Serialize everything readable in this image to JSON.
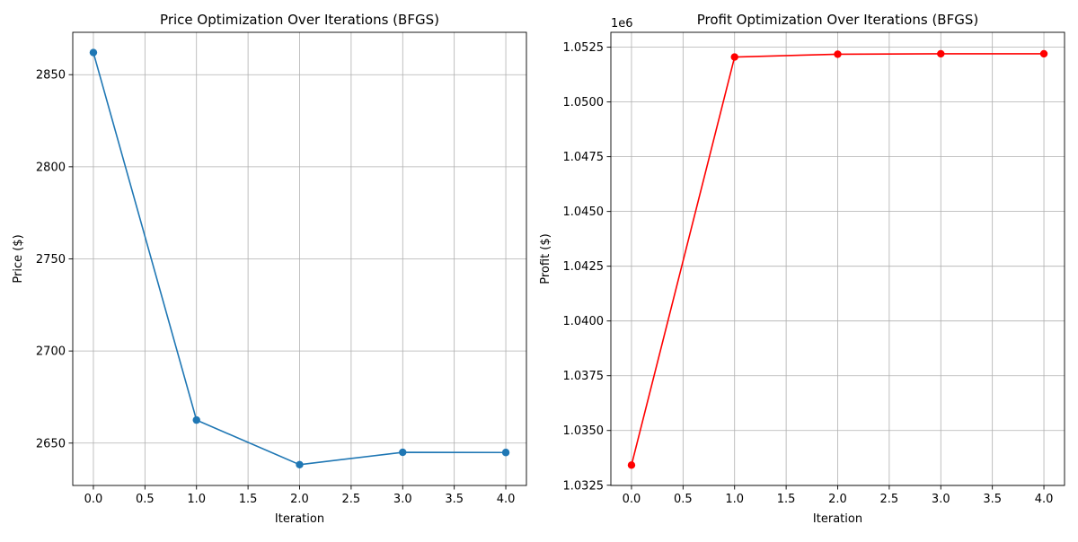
{
  "chart_data": [
    {
      "type": "line",
      "title": "Price Optimization Over Iterations (BFGS)",
      "xlabel": "Iteration",
      "ylabel": "Price ($)",
      "offset_text": "",
      "x": [
        0,
        1,
        2,
        3,
        4
      ],
      "series": [
        {
          "values": [
            2862,
            2662.5,
            2638.3,
            2645,
            2644.9
          ],
          "color": "#1f77b4",
          "marker": "circle"
        }
      ],
      "xlim": [
        -0.2,
        4.2
      ],
      "ylim": [
        2627,
        2873
      ],
      "xticks": [
        0.0,
        0.5,
        1.0,
        1.5,
        2.0,
        2.5,
        3.0,
        3.5,
        4.0
      ],
      "xtick_labels": [
        "0.0",
        "0.5",
        "1.0",
        "1.5",
        "2.0",
        "2.5",
        "3.0",
        "3.5",
        "4.0"
      ],
      "yticks": [
        2650,
        2700,
        2750,
        2800,
        2850
      ],
      "ytick_labels": [
        "2650",
        "2700",
        "2750",
        "2800",
        "2850"
      ],
      "grid": true,
      "legend": "none"
    },
    {
      "type": "line",
      "title": "Profit Optimization Over Iterations (BFGS)",
      "xlabel": "Iteration",
      "ylabel": "Profit ($)",
      "offset_text": "1e6",
      "x": [
        0,
        1,
        2,
        3,
        4
      ],
      "series": [
        {
          "values": [
            1.03342,
            1.05205,
            1.05218,
            1.0522,
            1.0522
          ],
          "color": "#ff0000",
          "marker": "circle"
        }
      ],
      "xlim": [
        -0.2,
        4.2
      ],
      "ylim": [
        1.03249,
        1.05318
      ],
      "xticks": [
        0.0,
        0.5,
        1.0,
        1.5,
        2.0,
        2.5,
        3.0,
        3.5,
        4.0
      ],
      "xtick_labels": [
        "0.0",
        "0.5",
        "1.0",
        "1.5",
        "2.0",
        "2.5",
        "3.0",
        "3.5",
        "4.0"
      ],
      "yticks": [
        1.0325,
        1.035,
        1.0375,
        1.04,
        1.0425,
        1.045,
        1.0475,
        1.05,
        1.0525
      ],
      "ytick_labels": [
        "1.0325",
        "1.0350",
        "1.0375",
        "1.0400",
        "1.0425",
        "1.0450",
        "1.0475",
        "1.0500",
        "1.0525"
      ],
      "grid": true,
      "legend": "none"
    }
  ]
}
